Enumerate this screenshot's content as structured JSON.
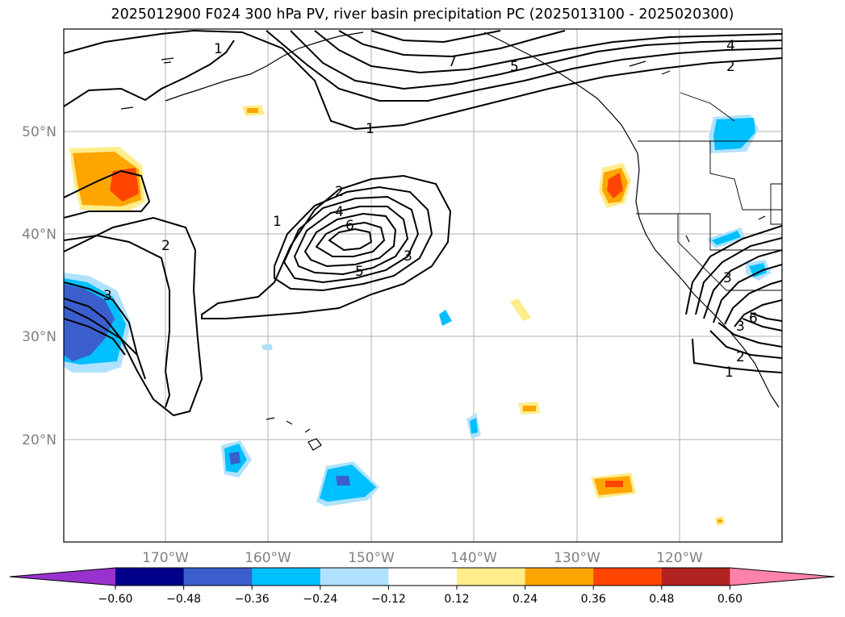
{
  "title": "2025012900 F024 300 hPa PV, river basin precipitation PC (2025013100 - 2025020300)",
  "map": {
    "lat_labels": [
      "50°N",
      "40°N",
      "30°N",
      "20°N"
    ],
    "lon_labels": [
      "170°W",
      "160°W",
      "150°W",
      "140°W",
      "130°W",
      "120°W"
    ],
    "extent": {
      "lon_min": -180,
      "lon_max": -110,
      "lat_min": 10,
      "lat_max": 60
    }
  },
  "contour_labels": [
    "1",
    "7",
    "5",
    "4",
    "2",
    "1",
    "2",
    "4",
    "6",
    "5",
    "3",
    "1",
    "2",
    "3",
    "3",
    "6",
    "3",
    "2",
    "1"
  ],
  "colorbar": {
    "ticks": [
      "−0.60",
      "−0.48",
      "−0.36",
      "−0.24",
      "−0.12",
      "0.12",
      "0.24",
      "0.36",
      "0.48",
      "0.60"
    ],
    "colors": [
      "#9932cc",
      "#00008b",
      "#3a5fcd",
      "#00bfff",
      "#b0e2ff",
      "#ffffff",
      "#ffec8b",
      "#ffa500",
      "#ff4500",
      "#b22222",
      "#ff82ab"
    ]
  },
  "colors": {
    "grid": "#b0b0b0",
    "contour": "#000000",
    "tick_label": "#808080"
  }
}
